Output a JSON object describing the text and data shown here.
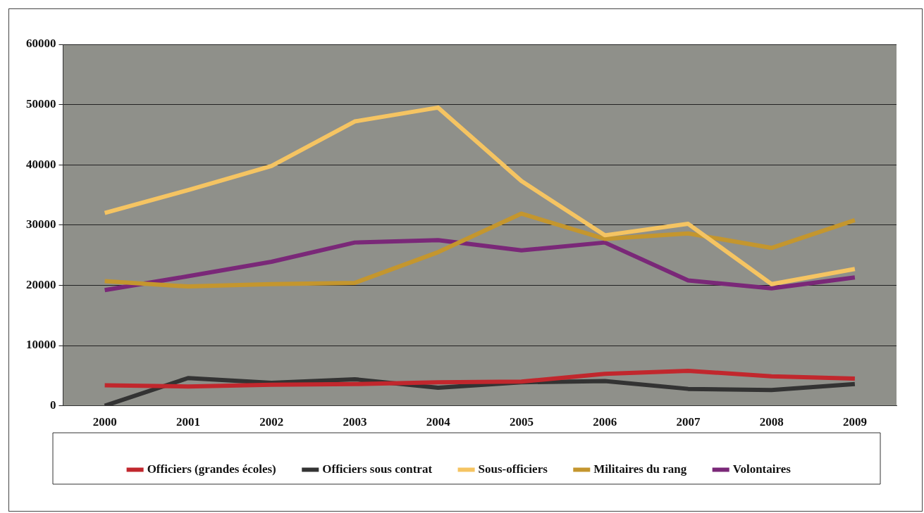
{
  "chart_data": {
    "type": "line",
    "categories": [
      "2000",
      "2001",
      "2002",
      "2003",
      "2004",
      "2005",
      "2006",
      "2007",
      "2008",
      "2009"
    ],
    "series": [
      {
        "name": "Officiers (grandes écoles)",
        "color": "#c1272d",
        "values": [
          3400,
          3200,
          3500,
          3600,
          3900,
          4000,
          5300,
          5800,
          4900,
          4500
        ]
      },
      {
        "name": "Officiers sous contrat",
        "color": "#333333",
        "values": [
          0,
          4600,
          3800,
          4400,
          3000,
          3900,
          4100,
          2800,
          2600,
          3600
        ]
      },
      {
        "name": "Sous-officiers",
        "color": "#f5c462",
        "values": [
          32000,
          35800,
          39800,
          47200,
          49500,
          37300,
          28300,
          30200,
          20200,
          22700
        ]
      },
      {
        "name": "Militaires du rang",
        "color": "#c4962e",
        "values": [
          20700,
          19800,
          20200,
          20400,
          25500,
          31900,
          27700,
          28600,
          26200,
          30800
        ]
      },
      {
        "name": "Volontaires",
        "color": "#7a2878",
        "values": [
          19200,
          21500,
          23900,
          27100,
          27500,
          25800,
          27100,
          20800,
          19500,
          21300
        ]
      }
    ],
    "ylim": [
      0,
      60000
    ],
    "yticks": [
      0,
      10000,
      20000,
      30000,
      40000,
      50000,
      60000
    ],
    "grid": "y",
    "legend": "bottom",
    "marker": "none",
    "line_style": "solid"
  }
}
